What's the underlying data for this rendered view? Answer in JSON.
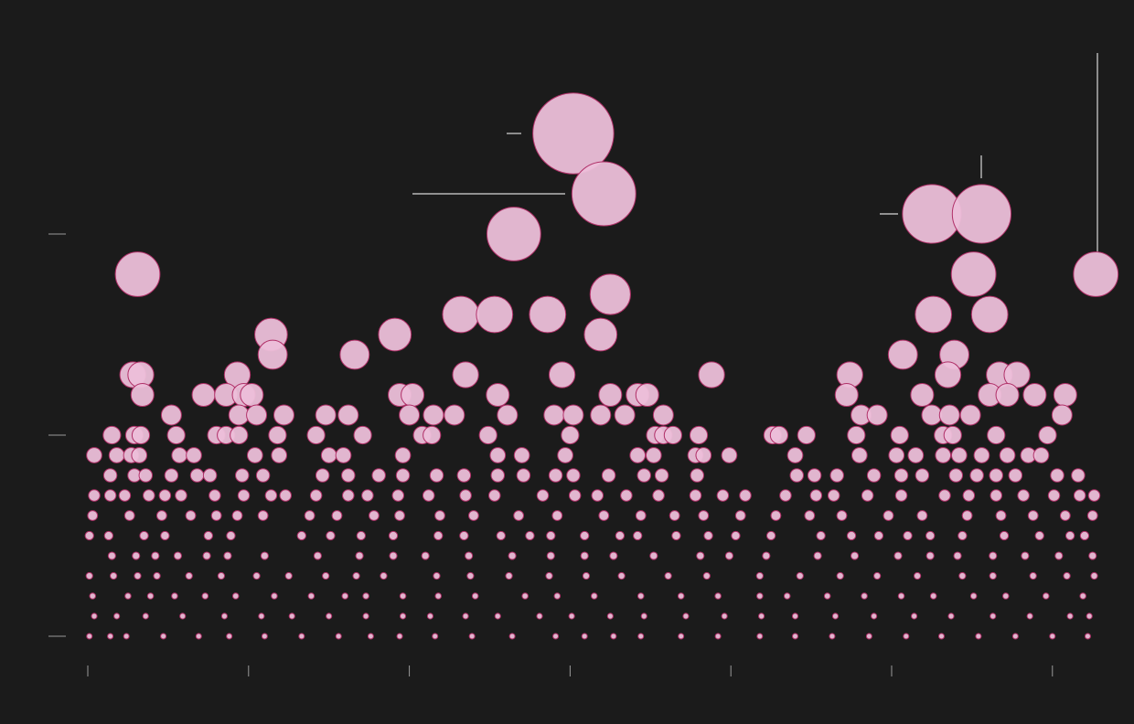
{
  "chart_data": {
    "type": "bubble",
    "color": "#ecbfd9",
    "edge_color": "#b03068",
    "xlim": [
      0,
      628
    ],
    "xticks": [
      0,
      100,
      200,
      300,
      400,
      500,
      600
    ],
    "ylim": [
      0,
      25
    ],
    "yticks": [
      0,
      10,
      20
    ],
    "x": [
      302,
      321,
      525,
      556,
      265,
      31,
      551,
      627,
      325,
      232,
      253,
      286,
      526,
      561,
      114,
      191,
      319,
      115,
      166,
      507,
      539,
      28,
      33,
      93,
      235,
      295,
      388,
      474,
      535,
      567,
      578,
      34,
      72,
      86,
      97,
      102,
      194,
      202,
      255,
      325,
      342,
      348,
      472,
      519,
      561,
      572,
      589,
      608,
      52,
      94,
      105,
      122,
      148,
      162,
      200,
      215,
      228,
      261,
      290,
      302,
      319,
      334,
      358,
      481,
      491,
      525,
      536,
      549,
      606,
      15,
      29,
      33,
      55,
      80,
      86,
      94,
      118,
      142,
      171,
      208,
      214,
      249,
      300,
      353,
      358,
      364,
      380,
      426,
      430,
      447,
      478,
      505,
      532,
      538,
      565,
      597,
      4,
      18,
      27,
      32,
      57,
      66,
      104,
      119,
      150,
      159,
      196,
      255,
      270,
      297,
      342,
      352,
      378,
      383,
      399,
      440,
      480,
      503,
      515,
      532,
      542,
      556,
      572,
      585,
      593,
      14,
      29,
      36,
      52,
      68,
      76,
      96,
      109,
      146,
      162,
      181,
      196,
      217,
      234,
      255,
      271,
      291,
      302,
      324,
      346,
      357,
      379,
      441,
      452,
      466,
      489,
      506,
      519,
      540,
      553,
      565,
      577,
      603,
      616,
      4,
      14,
      23,
      38,
      48,
      58,
      79,
      97,
      114,
      123,
      142,
      162,
      174,
      193,
      212,
      235,
      253,
      283,
      303,
      317,
      335,
      355,
      378,
      395,
      409,
      434,
      453,
      464,
      485,
      506,
      533,
      548,
      565,
      582,
      601,
      617,
      626,
      3,
      26,
      46,
      64,
      80,
      93,
      109,
      138,
      155,
      178,
      194,
      219,
      240,
      268,
      292,
      321,
      344,
      365,
      383,
      406,
      428,
      449,
      469,
      498,
      519,
      547,
      568,
      588,
      608,
      625,
      1,
      13,
      35,
      48,
      75,
      89,
      133,
      151,
      170,
      190,
      218,
      234,
      257,
      275,
      288,
      309,
      331,
      342,
      366,
      386,
      403,
      425,
      456,
      475,
      492,
      510,
      524,
      544,
      570,
      592,
      611,
      620,
      15,
      30,
      42,
      56,
      74,
      87,
      110,
      143,
      169,
      190,
      210,
      237,
      264,
      288,
      309,
      327,
      352,
      381,
      399,
      422,
      454,
      477,
      504,
      524,
      541,
      563,
      583,
      604,
      625,
      1,
      16,
      31,
      43,
      63,
      83,
      105,
      125,
      148,
      167,
      184,
      217,
      238,
      262,
      287,
      310,
      332,
      361,
      385,
      418,
      443,
      468,
      491,
      516,
      544,
      563,
      588,
      609,
      626,
      3,
      25,
      39,
      54,
      73,
      92,
      116,
      139,
      160,
      173,
      196,
      218,
      241,
      272,
      292,
      315,
      344,
      369,
      392,
      418,
      435,
      460,
      483,
      506,
      526,
      551,
      571,
      596,
      619,
      4,
      18,
      36,
      59,
      85,
      108,
      127,
      150,
      173,
      196,
      213,
      235,
      255,
      281,
      301,
      325,
      346,
      372,
      396,
      419,
      440,
      465,
      489,
      514,
      537,
      563,
      586,
      611,
      623,
      1,
      14,
      24,
      47,
      69,
      88,
      110,
      133,
      156,
      176,
      194,
      216,
      239,
      264,
      291,
      309,
      327,
      344,
      369,
      392,
      418,
      440,
      463,
      486,
      509,
      531,
      554,
      577,
      600,
      622
    ],
    "values": [
      25,
      22,
      21,
      21,
      20,
      18,
      18,
      18,
      17,
      16,
      16,
      16,
      16,
      16,
      15,
      15,
      15,
      14,
      14,
      14,
      14,
      13,
      13,
      13,
      13,
      13,
      13,
      13,
      13,
      13,
      13,
      12,
      12,
      12,
      12,
      12,
      12,
      12,
      12,
      12,
      12,
      12,
      12,
      12,
      12,
      12,
      12,
      12,
      11,
      11,
      11,
      11,
      11,
      11,
      11,
      11,
      11,
      11,
      11,
      11,
      11,
      11,
      11,
      11,
      11,
      11,
      11,
      11,
      11,
      10,
      10,
      10,
      10,
      10,
      10,
      10,
      10,
      10,
      10,
      10,
      10,
      10,
      10,
      10,
      10,
      10,
      10,
      10,
      10,
      10,
      10,
      10,
      10,
      10,
      10,
      10,
      9,
      9,
      9,
      9,
      9,
      9,
      9,
      9,
      9,
      9,
      9,
      9,
      9,
      9,
      9,
      9,
      9,
      9,
      9,
      9,
      9,
      9,
      9,
      9,
      9,
      9,
      9,
      9,
      9,
      8,
      8,
      8,
      8,
      8,
      8,
      8,
      8,
      8,
      8,
      8,
      8,
      8,
      8,
      8,
      8,
      8,
      8,
      8,
      8,
      8,
      8,
      8,
      8,
      8,
      8,
      8,
      8,
      8,
      8,
      8,
      8,
      8,
      8,
      7,
      7,
      7,
      7,
      7,
      7,
      7,
      7,
      7,
      7,
      7,
      7,
      7,
      7,
      7,
      7,
      7,
      7,
      7,
      7,
      7,
      7,
      7,
      7,
      7,
      7,
      7,
      7,
      7,
      7,
      7,
      7,
      7,
      7,
      7,
      7,
      7,
      6,
      6,
      6,
      6,
      6,
      6,
      6,
      6,
      6,
      6,
      6,
      6,
      6,
      6,
      6,
      6,
      6,
      6,
      6,
      6,
      6,
      6,
      6,
      6,
      6,
      6,
      6,
      6,
      6,
      6,
      5,
      5,
      5,
      5,
      5,
      5,
      5,
      5,
      5,
      5,
      5,
      5,
      5,
      5,
      5,
      5,
      5,
      5,
      5,
      5,
      5,
      5,
      5,
      5,
      5,
      5,
      5,
      5,
      5,
      5,
      5,
      5,
      4,
      4,
      4,
      4,
      4,
      4,
      4,
      4,
      4,
      4,
      4,
      4,
      4,
      4,
      4,
      4,
      4,
      4,
      4,
      4,
      4,
      4,
      4,
      4,
      4,
      4,
      4,
      4,
      4,
      3,
      3,
      3,
      3,
      3,
      3,
      3,
      3,
      3,
      3,
      3,
      3,
      3,
      3,
      3,
      3,
      3,
      3,
      3,
      3,
      3,
      3,
      3,
      3,
      3,
      3,
      3,
      3,
      3,
      2,
      2,
      2,
      2,
      2,
      2,
      2,
      2,
      2,
      2,
      2,
      2,
      2,
      2,
      2,
      2,
      2,
      2,
      2,
      2,
      2,
      2,
      2,
      2,
      2,
      2,
      2,
      2,
      2,
      1,
      1,
      1,
      1,
      1,
      1,
      1,
      1,
      1,
      1,
      1,
      1,
      1,
      1,
      1,
      1,
      1,
      1,
      1,
      1,
      1,
      1,
      1,
      1,
      1,
      1,
      1,
      1,
      1,
      0,
      0,
      0,
      0,
      0,
      0,
      0,
      0,
      0,
      0,
      0,
      0,
      0,
      0,
      0,
      0,
      0,
      0,
      0,
      0,
      0,
      0,
      0,
      0,
      0,
      0,
      0,
      0,
      0,
      0
    ]
  }
}
